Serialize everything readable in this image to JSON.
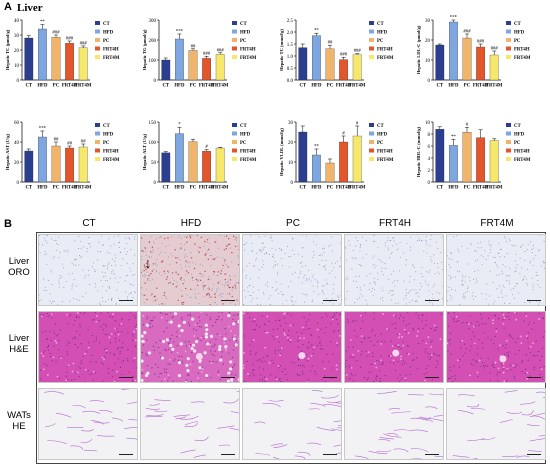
{
  "panel_a": {
    "letter": "A",
    "title": "Liver"
  },
  "panel_b": {
    "letter": "B"
  },
  "colors": {
    "CT": "#2c3e8f",
    "HFD": "#7ea6e0",
    "PC": "#f1b46b",
    "FRT4H": "#e3552a",
    "FRT4M": "#f6e86a"
  },
  "chart_data": [
    {
      "type": "bar",
      "ylabel": "Hepatic TC (μmol/g)",
      "ylim": [
        0,
        40
      ],
      "yticks": [
        0,
        10,
        20,
        30,
        40
      ],
      "categories": [
        "CT",
        "HFD",
        "PC",
        "FRT4H",
        "FRT4M"
      ],
      "values": [
        28,
        34,
        28.5,
        24.5,
        21.5
      ],
      "errors": [
        1.5,
        3,
        1.5,
        1.5,
        1.2
      ],
      "annotations": [
        "",
        "**",
        "###",
        "###",
        "###"
      ],
      "legend": [
        "CT",
        "HFD",
        "PC",
        "FRT4H",
        "FRT4M"
      ]
    },
    {
      "type": "bar",
      "ylabel": "Hepatic TG (μmol/g)",
      "ylim": [
        0,
        300
      ],
      "yticks": [
        0,
        100,
        200,
        300
      ],
      "categories": [
        "CT",
        "HFD",
        "PC",
        "FRT4H",
        "FRT4M"
      ],
      "values": [
        100,
        205,
        148,
        108,
        128
      ],
      "errors": [
        10,
        25,
        8,
        10,
        8
      ],
      "annotations": [
        "",
        "***",
        "##",
        "###",
        "###"
      ],
      "legend": [
        "CT",
        "HFD",
        "PC",
        "FRT4H",
        "FRT4M"
      ]
    },
    {
      "type": "bar",
      "ylabel": "Hepatic TC (mmol/g)",
      "ylim": [
        0,
        2.5
      ],
      "yticks": [
        0.0,
        0.5,
        1.0,
        1.5,
        2.0,
        2.5
      ],
      "categories": [
        "CT",
        "HFD",
        "PC",
        "FRT4H",
        "FRT4M"
      ],
      "values": [
        1.35,
        1.85,
        1.3,
        0.85,
        1.05
      ],
      "errors": [
        0.15,
        0.1,
        0.15,
        0.1,
        0.05
      ],
      "annotations": [
        "",
        "**",
        "##",
        "###",
        "###"
      ],
      "legend": [
        "CT",
        "HFD",
        "PC",
        "FRT4H",
        "FRT4M"
      ]
    },
    {
      "type": "bar",
      "ylabel": "Hepatic LDL-C (μmol/g)",
      "ylim": [
        0,
        30
      ],
      "yticks": [
        0,
        10,
        20,
        30
      ],
      "categories": [
        "CT",
        "HFD",
        "PC",
        "FRT4H",
        "FRT4M"
      ],
      "values": [
        17.5,
        29,
        21,
        16.5,
        12.5
      ],
      "errors": [
        0.5,
        1,
        2,
        1.5,
        2
      ],
      "annotations": [
        "",
        "***",
        "###",
        "###",
        "###"
      ],
      "legend": [
        "CT",
        "HFD",
        "PC",
        "FRT4H",
        "FRT4M"
      ]
    },
    {
      "type": "bar",
      "ylabel": "Hepatic AST (U/g)",
      "ylim": [
        0,
        60
      ],
      "yticks": [
        0,
        20,
        40,
        60
      ],
      "categories": [
        "CT",
        "HFD",
        "PC",
        "FRT4H",
        "FRT4M"
      ],
      "values": [
        31,
        45,
        36,
        34,
        35
      ],
      "errors": [
        2,
        6,
        4,
        2,
        3
      ],
      "annotations": [
        "",
        "***",
        "##",
        "##",
        "##"
      ],
      "legend": [
        "CT",
        "HFD",
        "PC",
        "FRT4H",
        "FRT4M"
      ]
    },
    {
      "type": "bar",
      "ylabel": "Hepatic ALT (U/g)",
      "ylim": [
        0,
        150
      ],
      "yticks": [
        0,
        50,
        100,
        150
      ],
      "categories": [
        "CT",
        "HFD",
        "PC",
        "FRT4H",
        "FRT4M"
      ],
      "values": [
        73,
        121,
        101,
        77,
        85
      ],
      "errors": [
        3,
        16,
        6,
        4,
        2
      ],
      "annotations": [
        "",
        "*",
        "",
        "#",
        ""
      ],
      "legend": [
        "CT",
        "HFD",
        "PC",
        "FRT4H",
        "FRT4M"
      ]
    },
    {
      "type": "bar",
      "ylabel": "Hepatic VLDL (mmol/g)",
      "ylim": [
        0,
        30
      ],
      "yticks": [
        0,
        10,
        20,
        30
      ],
      "categories": [
        "CT",
        "HFD",
        "PC",
        "FRT4H",
        "FRT4M"
      ],
      "values": [
        25,
        13.5,
        9.5,
        20,
        23
      ],
      "errors": [
        3,
        3,
        2,
        3,
        5
      ],
      "annotations": [
        "",
        "**",
        "",
        "#",
        "#"
      ],
      "legend": [
        "CT",
        "HFD",
        "PC",
        "FRT4H",
        "FRT4M"
      ]
    },
    {
      "type": "bar",
      "ylabel": "Hepatic HDL-C (mmol/g)",
      "ylim": [
        0,
        10
      ],
      "yticks": [
        0,
        2,
        4,
        6,
        8,
        10
      ],
      "categories": [
        "CT",
        "HFD",
        "PC",
        "FRT4H",
        "FRT4M"
      ],
      "values": [
        8.8,
        6.1,
        8.3,
        7.4,
        6.9
      ],
      "errors": [
        0.4,
        1.0,
        0.8,
        1.3,
        0.3
      ],
      "annotations": [
        "",
        "**",
        "#",
        "",
        ""
      ],
      "legend": [
        "CT",
        "HFD",
        "PC",
        "FRT4H",
        "FRT4M"
      ]
    }
  ],
  "histology": {
    "columns": [
      "CT",
      "HFD",
      "PC",
      "FRT4H",
      "FRT4M"
    ],
    "rows": [
      {
        "label_line1": "Liver",
        "label_line2": "ORO",
        "stain": "oro"
      },
      {
        "label_line1": "Liver",
        "label_line2": "H&E",
        "stain": "he"
      },
      {
        "label_line1": "WATs",
        "label_line2": "HE",
        "stain": "wat"
      }
    ],
    "arrow_symbol": "↓"
  }
}
